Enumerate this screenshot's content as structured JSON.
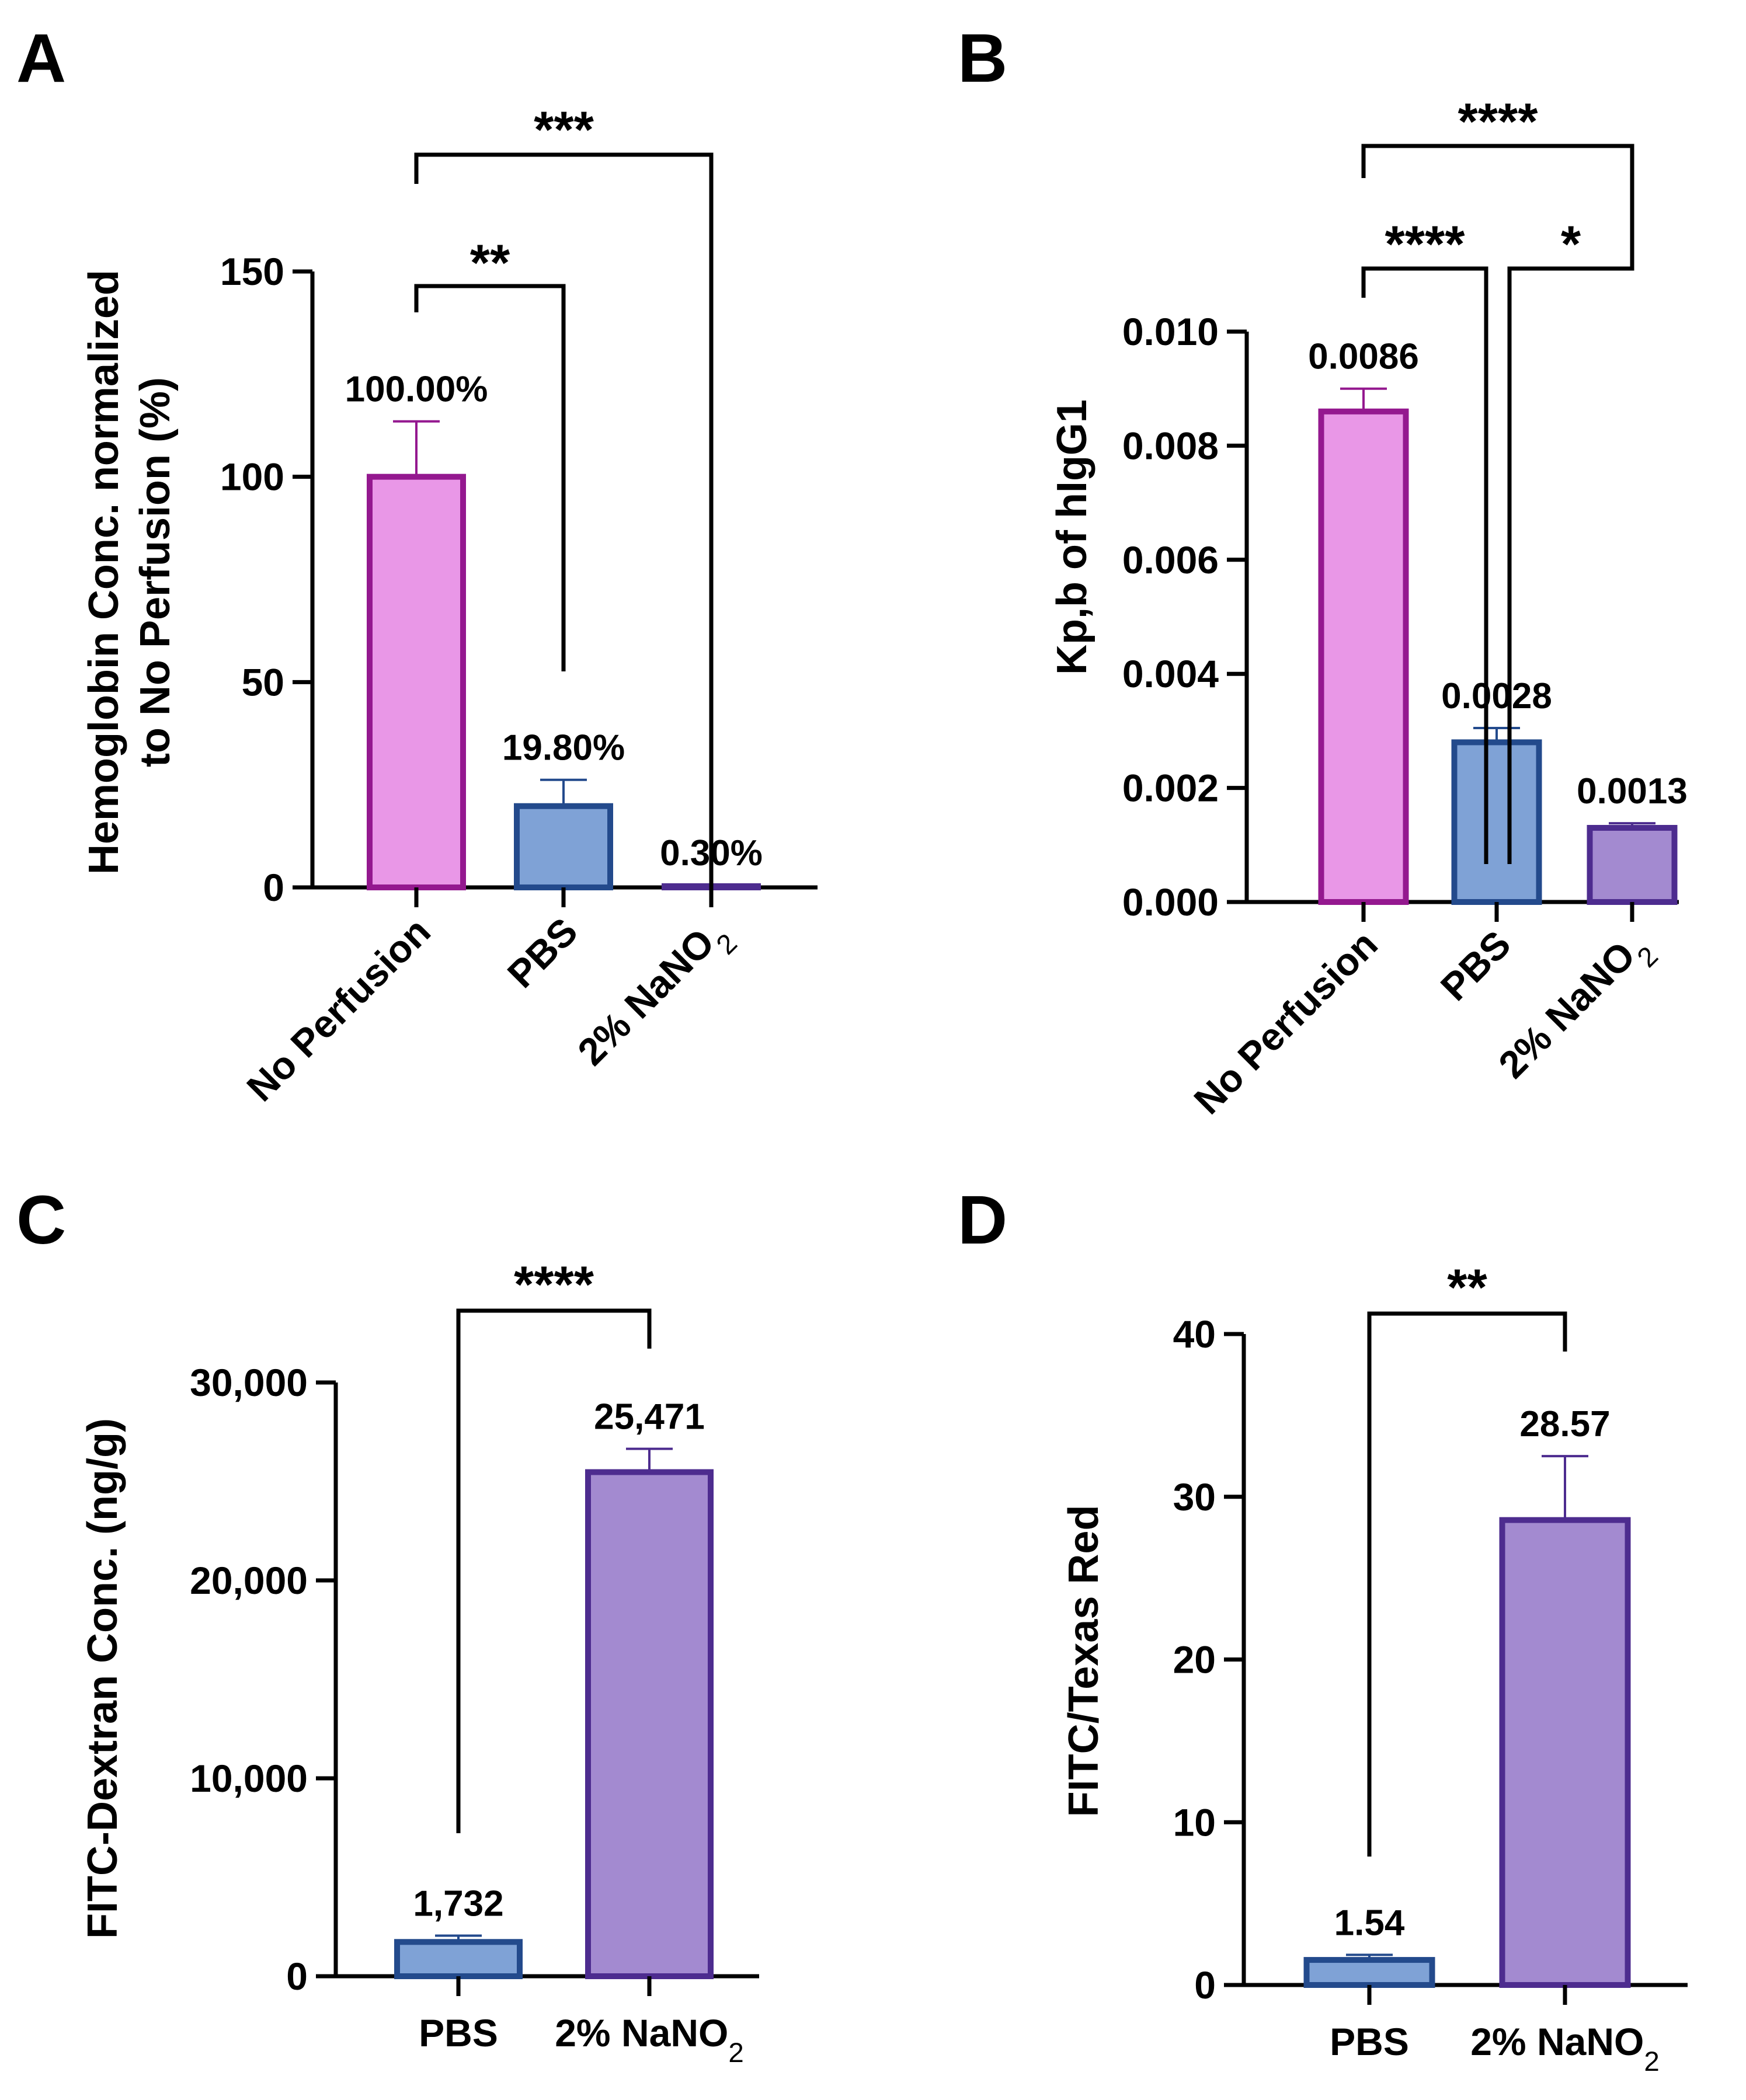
{
  "colors": {
    "pink_fill": "#e997e7",
    "pink_edge": "#94188f",
    "blue_fill": "#7fa2d6",
    "blue_edge": "#234a8c",
    "purple_fill": "#a38ad0",
    "purple_edge": "#4d2c8f"
  },
  "panels": {
    "A": {
      "letter": "A"
    },
    "B": {
      "letter": "B"
    },
    "C": {
      "letter": "C"
    },
    "D": {
      "letter": "D"
    }
  },
  "chart_data": [
    {
      "panel": "A",
      "type": "bar",
      "categories": [
        "No Perfusion",
        "PBS",
        "2% NaNO₂"
      ],
      "values": [
        100.0,
        19.8,
        0.3
      ],
      "error_upper": [
        113.5,
        26.2,
        0.6
      ],
      "value_labels": [
        "100.00%",
        "19.80%",
        "0.30%"
      ],
      "ylabel": "Hemoglobin Conc. normalized to No Perfusion (%)",
      "ylim": [
        0,
        150
      ],
      "yticks": [
        0,
        50,
        100,
        150
      ],
      "ytick_labels": [
        "0",
        "50",
        "100",
        "150"
      ],
      "significance": [
        {
          "from": 0,
          "to": 1,
          "label": "**"
        },
        {
          "from": 0,
          "to": 2,
          "label": "***"
        }
      ]
    },
    {
      "panel": "B",
      "type": "bar",
      "categories": [
        "No Perfusion",
        "PBS",
        "2% NaNO₂"
      ],
      "values": [
        0.0086,
        0.0028,
        0.0013
      ],
      "error_upper": [
        0.009,
        0.00305,
        0.00138
      ],
      "value_labels": [
        "0.0086",
        "0.0028",
        "0.0013"
      ],
      "ylabel": "Kp,b of hIgG1",
      "ylim": [
        0,
        0.01
      ],
      "yticks": [
        0,
        0.002,
        0.004,
        0.006,
        0.008,
        0.01
      ],
      "ytick_labels": [
        "0.000",
        "0.002",
        "0.004",
        "0.006",
        "0.008",
        "0.010"
      ],
      "significance": [
        {
          "from": 0,
          "to": 1,
          "label": "****"
        },
        {
          "from": 1,
          "to": 2,
          "label": "*"
        },
        {
          "from": 0,
          "to": 2,
          "label": "****"
        }
      ]
    },
    {
      "panel": "C",
      "type": "bar",
      "categories": [
        "PBS",
        "2% NaNO₂"
      ],
      "values": [
        1732,
        25471
      ],
      "error_upper": [
        2050,
        26650
      ],
      "value_labels": [
        "1,732",
        "25,471"
      ],
      "ylabel": "FITC-Dextran Conc. (ng/g)",
      "ylim": [
        0,
        30000
      ],
      "yticks": [
        0,
        10000,
        20000,
        30000
      ],
      "ytick_labels": [
        "0",
        "10,000",
        "20,000",
        "30,000"
      ],
      "significance": [
        {
          "from": 0,
          "to": 1,
          "label": "****"
        }
      ]
    },
    {
      "panel": "D",
      "type": "bar",
      "categories": [
        "PBS",
        "2% NaNO₂"
      ],
      "values": [
        1.54,
        28.57
      ],
      "error_upper": [
        1.85,
        32.5
      ],
      "value_labels": [
        "1.54",
        "28.57"
      ],
      "ylabel": "FITC/Texas Red",
      "ylim": [
        0,
        40
      ],
      "yticks": [
        0,
        10,
        20,
        30,
        40
      ],
      "ytick_labels": [
        "0",
        "10",
        "20",
        "30",
        "40"
      ],
      "significance": [
        {
          "from": 0,
          "to": 1,
          "label": "**"
        }
      ]
    }
  ]
}
